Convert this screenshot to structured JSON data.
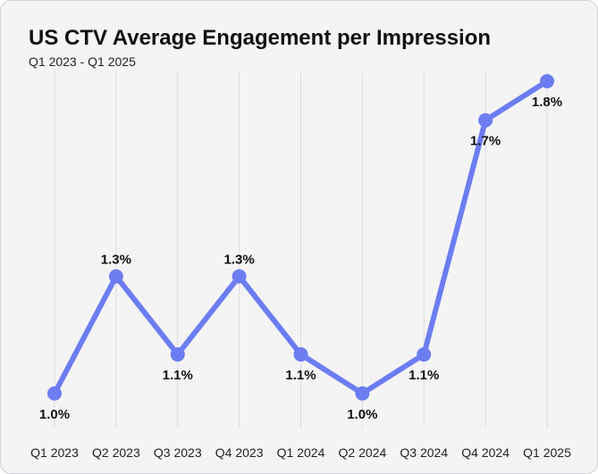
{
  "chart_data": {
    "type": "line",
    "title": "US CTV Average Engagement per Impression",
    "subtitle": "Q1 2023 - Q1 2025",
    "xlabel": "",
    "ylabel": "",
    "categories": [
      "Q1 2023",
      "Q2 2023",
      "Q3 2023",
      "Q4 2023",
      "Q1 2024",
      "Q2 2024",
      "Q3 2024",
      "Q4 2024",
      "Q1 2025"
    ],
    "series": [
      {
        "name": "Average Engagement per Impression",
        "values": [
          1.0,
          1.3,
          1.1,
          1.3,
          1.1,
          1.0,
          1.1,
          1.7,
          1.8
        ],
        "labels": [
          "1.0%",
          "1.3%",
          "1.1%",
          "1.3%",
          "1.1%",
          "1.0%",
          "1.1%",
          "1.7%",
          "1.8%"
        ],
        "label_position": [
          "below",
          "above",
          "below",
          "above",
          "below",
          "below",
          "below",
          "below",
          "below"
        ],
        "color": "#6c7df2"
      }
    ],
    "ylim": [
      0.6,
      1.8
    ],
    "grid": "vertical",
    "legend": "none"
  },
  "colors": {
    "line": "#6c7df2",
    "grid": "#dedee2",
    "background": "#f4f4f5"
  }
}
